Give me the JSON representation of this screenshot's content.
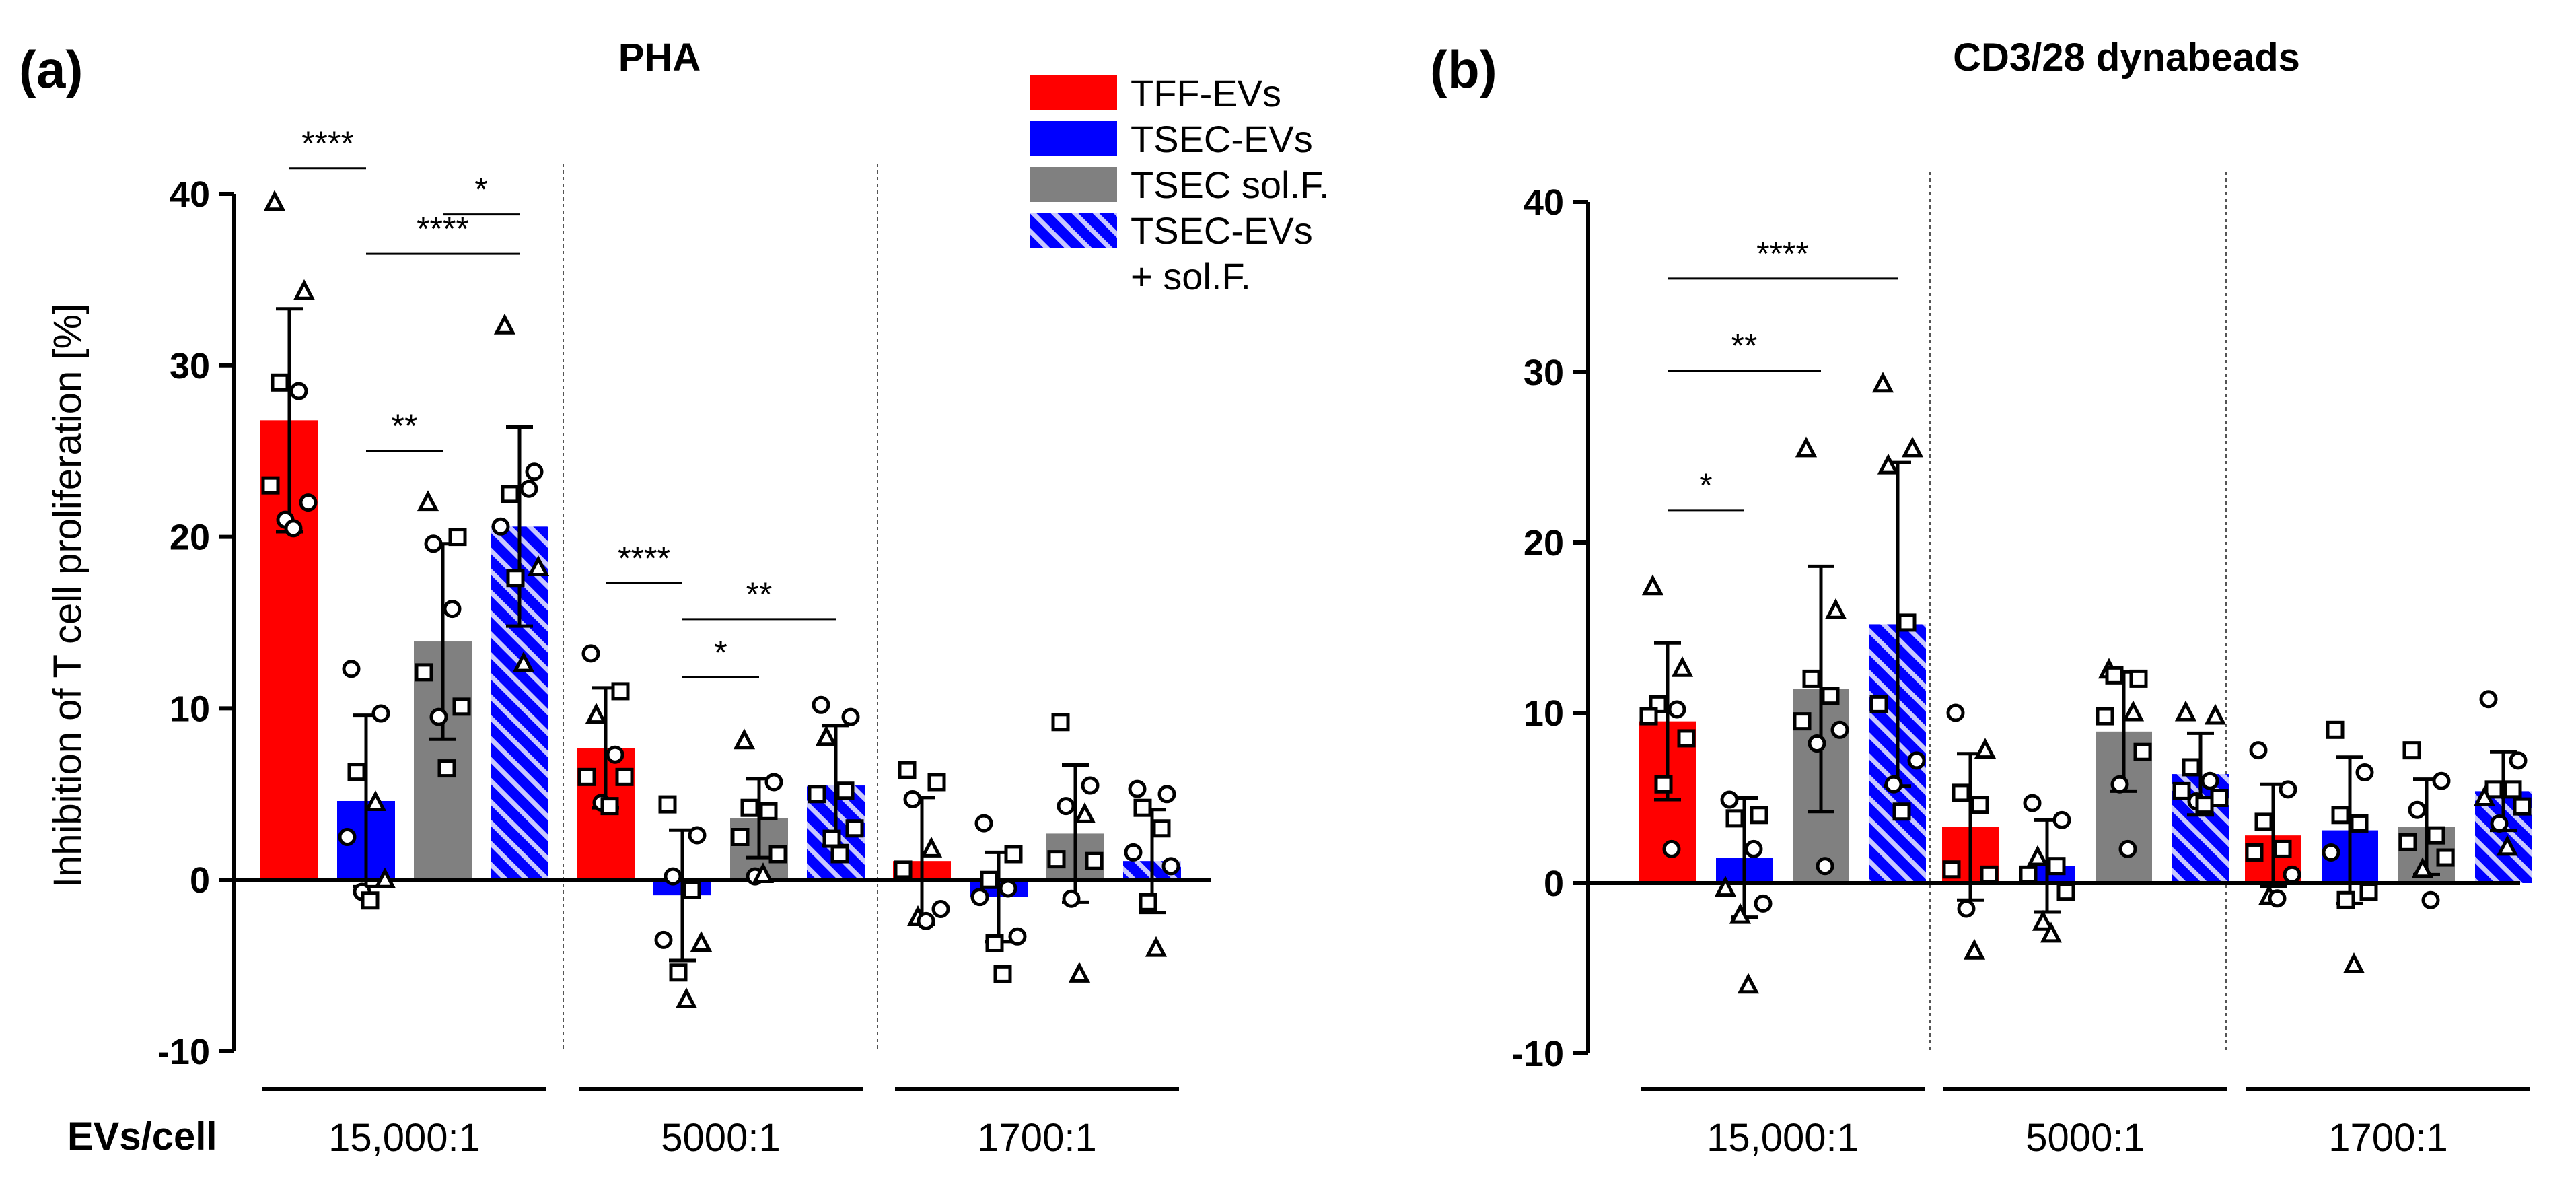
{
  "colors": {
    "tff": "#ff0000",
    "tsec": "#0000ff",
    "sol": "#808080",
    "combo_bg": "#0000ff",
    "combo_stripe": "#c8c8ff",
    "axis": "#000000",
    "sig_line": "#a0a0a0"
  },
  "figure": {
    "xaxis_title": "EVs/cell"
  },
  "legend": {
    "items": [
      {
        "key": "tff",
        "label": "TFF-EVs"
      },
      {
        "key": "tsec",
        "label": "TSEC-EVs"
      },
      {
        "key": "sol",
        "label": "TSEC sol.F."
      },
      {
        "key": "combo",
        "label": "TSEC-EVs",
        "label2": "+ sol.F."
      }
    ]
  },
  "chart_data": [
    {
      "type": "bar",
      "panel_label": "(a)",
      "title": "PHA",
      "ylabel": "Inhibition of T cell proliferation [%]",
      "ylim": [
        -10,
        40
      ],
      "yticks": [
        -10,
        0,
        10,
        20,
        30,
        40
      ],
      "yticks_labels": [
        "-10",
        "0",
        "10",
        "20",
        "30",
        "40"
      ],
      "groups": [
        "15,000:1",
        "5000:1",
        "1700:1"
      ],
      "series": [
        {
          "name": "TFF-EVs",
          "key": "tff",
          "values": [
            26.8,
            7.7,
            1.1
          ],
          "sd": [
            6.5,
            3.5,
            3.7
          ]
        },
        {
          "name": "TSEC-EVs",
          "key": "tsec",
          "values": [
            4.6,
            -0.9,
            -1.0
          ],
          "sd": [
            5.0,
            3.8,
            2.6
          ]
        },
        {
          "name": "TSEC sol.F.",
          "key": "sol",
          "values": [
            13.9,
            3.6,
            2.7
          ],
          "sd": [
            5.7,
            2.3,
            4.0
          ]
        },
        {
          "name": "TSEC-EVs + sol.F.",
          "key": "combo",
          "values": [
            20.6,
            5.5,
            1.1
          ],
          "sd": [
            5.8,
            3.5,
            3.0
          ]
        }
      ],
      "points": [
        [
          [
            [
              39.5,
              "tri"
            ],
            [
              34.3,
              "tri"
            ],
            [
              29.0,
              "sq"
            ],
            [
              28.5,
              "circ"
            ],
            [
              23.0,
              "sq"
            ],
            [
              22.0,
              "circ"
            ],
            [
              21.0,
              "circ"
            ],
            [
              20.5,
              "circ"
            ]
          ],
          [
            [
              12.3,
              "circ"
            ],
            [
              9.7,
              "circ"
            ],
            [
              6.3,
              "sq"
            ],
            [
              4.5,
              "tri"
            ],
            [
              2.5,
              "circ"
            ],
            [
              0.0,
              "tri"
            ],
            [
              -0.7,
              "circ"
            ],
            [
              -1.2,
              "sq"
            ]
          ],
          [
            [
              22.0,
              "tri"
            ],
            [
              20.0,
              "sq"
            ],
            [
              19.6,
              "circ"
            ],
            [
              15.8,
              "circ"
            ],
            [
              12.1,
              "sq"
            ],
            [
              10.1,
              "sq"
            ],
            [
              9.5,
              "circ"
            ],
            [
              6.5,
              "sq"
            ]
          ],
          [
            [
              32.3,
              "tri"
            ],
            [
              23.8,
              "circ"
            ],
            [
              22.5,
              "sq"
            ],
            [
              22.8,
              "circ"
            ],
            [
              20.6,
              "circ"
            ],
            [
              18.2,
              "tri"
            ],
            [
              17.6,
              "sq"
            ],
            [
              12.6,
              "tri"
            ]
          ]
        ],
        [
          [
            [
              13.2,
              "circ"
            ],
            [
              11.0,
              "sq"
            ],
            [
              9.6,
              "tri"
            ],
            [
              7.3,
              "circ"
            ],
            [
              6.0,
              "sq"
            ],
            [
              6.0,
              "sq"
            ],
            [
              4.5,
              "circ"
            ],
            [
              4.3,
              "sq"
            ]
          ],
          [
            [
              4.4,
              "sq"
            ],
            [
              2.6,
              "circ"
            ],
            [
              0.2,
              "circ"
            ],
            [
              -0.6,
              "sq"
            ],
            [
              -3.5,
              "circ"
            ],
            [
              -3.7,
              "tri"
            ],
            [
              -5.4,
              "sq"
            ],
            [
              -7.0,
              "tri"
            ]
          ],
          [
            [
              8.1,
              "tri"
            ],
            [
              5.7,
              "circ"
            ],
            [
              4.2,
              "sq"
            ],
            [
              4.0,
              "sq"
            ],
            [
              2.5,
              "sq"
            ],
            [
              1.5,
              "sq"
            ],
            [
              0.2,
              "circ"
            ],
            [
              0.3,
              "tri"
            ]
          ],
          [
            [
              10.2,
              "circ"
            ],
            [
              9.5,
              "circ"
            ],
            [
              8.3,
              "tri"
            ],
            [
              5.2,
              "sq"
            ],
            [
              5.0,
              "sq"
            ],
            [
              3.0,
              "sq"
            ],
            [
              2.4,
              "sq"
            ],
            [
              1.5,
              "sq"
            ]
          ]
        ],
        [
          [
            [
              6.4,
              "sq"
            ],
            [
              5.7,
              "sq"
            ],
            [
              4.7,
              "circ"
            ],
            [
              1.8,
              "tri"
            ],
            [
              0.6,
              "sq"
            ],
            [
              -1.7,
              "circ"
            ],
            [
              -2.2,
              "tri"
            ],
            [
              -2.4,
              "circ"
            ]
          ],
          [
            [
              3.3,
              "circ"
            ],
            [
              1.5,
              "sq"
            ],
            [
              0.0,
              "sq"
            ],
            [
              -0.5,
              "circ"
            ],
            [
              -1.0,
              "circ"
            ],
            [
              -3.3,
              "circ"
            ],
            [
              -3.7,
              "sq"
            ],
            [
              -5.5,
              "sq"
            ]
          ],
          [
            [
              9.2,
              "sq"
            ],
            [
              5.5,
              "circ"
            ],
            [
              4.3,
              "circ"
            ],
            [
              3.8,
              "tri"
            ],
            [
              1.2,
              "sq"
            ],
            [
              1.1,
              "sq"
            ],
            [
              -1.1,
              "circ"
            ],
            [
              -5.5,
              "tri"
            ]
          ],
          [
            [
              5.3,
              "circ"
            ],
            [
              5.0,
              "circ"
            ],
            [
              4.2,
              "sq"
            ],
            [
              3.0,
              "sq"
            ],
            [
              1.6,
              "circ"
            ],
            [
              0.8,
              "circ"
            ],
            [
              -1.3,
              "sq"
            ],
            [
              -4.0,
              "tri"
            ]
          ]
        ]
      ],
      "significance": [
        {
          "label": "****",
          "from": [
            0,
            0
          ],
          "to": [
            0,
            1
          ],
          "y": 41.5
        },
        {
          "label": "*",
          "from": [
            0,
            2
          ],
          "to": [
            0,
            3
          ],
          "y": 38.8
        },
        {
          "label": "****",
          "from": [
            0,
            1
          ],
          "to": [
            0,
            3
          ],
          "y": 36.5
        },
        {
          "label": "**",
          "from": [
            0,
            1
          ],
          "to": [
            0,
            2
          ],
          "y": 25.0
        },
        {
          "label": "****",
          "from": [
            1,
            0
          ],
          "to": [
            1,
            1
          ],
          "y": 17.3
        },
        {
          "label": "**",
          "from": [
            1,
            1
          ],
          "to": [
            1,
            3
          ],
          "y": 15.2
        },
        {
          "label": "*",
          "from": [
            1,
            1
          ],
          "to": [
            1,
            2
          ],
          "y": 11.8
        }
      ]
    },
    {
      "type": "bar",
      "panel_label": "(b)",
      "title": "CD3/28 dynabeads",
      "ylabel": "",
      "ylim": [
        -10,
        40
      ],
      "yticks": [
        -10,
        0,
        10,
        20,
        30,
        40
      ],
      "yticks_labels": [
        "-10",
        "0",
        "10",
        "20",
        "30",
        "40"
      ],
      "groups": [
        "15,000:1",
        "5000:1",
        "1700:1"
      ],
      "series": [
        {
          "name": "TFF-EVs",
          "key": "tff",
          "values": [
            9.5,
            3.3,
            2.8
          ],
          "sd": [
            4.6,
            4.3,
            3.0
          ]
        },
        {
          "name": "TSEC-EVs",
          "key": "tsec",
          "values": [
            1.5,
            1.0,
            3.1
          ],
          "sd": [
            3.5,
            2.7,
            4.3
          ]
        },
        {
          "name": "TSEC sol.F.",
          "key": "sol",
          "values": [
            11.4,
            8.9,
            3.3
          ],
          "sd": [
            7.2,
            3.5,
            2.8
          ]
        },
        {
          "name": "TSEC-EVs + sol.F.",
          "key": "combo",
          "values": [
            15.2,
            6.4,
            5.4
          ],
          "sd": [
            9.5,
            2.4,
            2.3
          ]
        }
      ],
      "points": [
        [
          [
            [
              17.4,
              "tri"
            ],
            [
              12.6,
              "tri"
            ],
            [
              10.5,
              "sq"
            ],
            [
              10.2,
              "circ"
            ],
            [
              9.8,
              "sq"
            ],
            [
              8.5,
              "sq"
            ],
            [
              5.8,
              "sq"
            ],
            [
              2.0,
              "circ"
            ]
          ],
          [
            [
              4.9,
              "circ"
            ],
            [
              4.0,
              "sq"
            ],
            [
              3.8,
              "sq"
            ],
            [
              2.0,
              "circ"
            ],
            [
              -0.3,
              "tri"
            ],
            [
              -1.2,
              "circ"
            ],
            [
              -1.9,
              "tri"
            ],
            [
              -6.0,
              "tri"
            ]
          ],
          [
            [
              25.5,
              "tri"
            ],
            [
              16.0,
              "tri"
            ],
            [
              12.0,
              "sq"
            ],
            [
              11.0,
              "sq"
            ],
            [
              9.5,
              "sq"
            ],
            [
              9.0,
              "circ"
            ],
            [
              8.2,
              "circ"
            ],
            [
              1.0,
              "circ"
            ]
          ],
          [
            [
              29.3,
              "tri"
            ],
            [
              25.5,
              "tri"
            ],
            [
              24.5,
              "tri"
            ],
            [
              15.3,
              "sq"
            ],
            [
              10.5,
              "sq"
            ],
            [
              7.2,
              "circ"
            ],
            [
              5.8,
              "circ"
            ],
            [
              4.2,
              "sq"
            ]
          ]
        ],
        [
          [
            [
              10.0,
              "circ"
            ],
            [
              7.8,
              "tri"
            ],
            [
              5.3,
              "sq"
            ],
            [
              4.6,
              "sq"
            ],
            [
              0.8,
              "sq"
            ],
            [
              0.5,
              "sq"
            ],
            [
              -1.5,
              "circ"
            ],
            [
              -4.0,
              "tri"
            ]
          ],
          [
            [
              4.7,
              "circ"
            ],
            [
              3.7,
              "circ"
            ],
            [
              1.5,
              "tri"
            ],
            [
              1.0,
              "sq"
            ],
            [
              0.5,
              "sq"
            ],
            [
              -0.5,
              "sq"
            ],
            [
              -2.3,
              "tri"
            ],
            [
              -3.0,
              "tri"
            ]
          ],
          [
            [
              12.5,
              "tri"
            ],
            [
              12.0,
              "sq"
            ],
            [
              12.2,
              "sq"
            ],
            [
              10.0,
              "tri"
            ],
            [
              9.8,
              "sq"
            ],
            [
              7.7,
              "sq"
            ],
            [
              5.8,
              "circ"
            ],
            [
              2.0,
              "circ"
            ]
          ],
          [
            [
              10.0,
              "tri"
            ],
            [
              9.8,
              "tri"
            ],
            [
              6.8,
              "sq"
            ],
            [
              6.0,
              "circ"
            ],
            [
              5.4,
              "sq"
            ],
            [
              5.0,
              "sq"
            ],
            [
              4.8,
              "circ"
            ],
            [
              4.6,
              "sq"
            ]
          ]
        ],
        [
          [
            [
              7.8,
              "circ"
            ],
            [
              5.5,
              "circ"
            ],
            [
              3.6,
              "sq"
            ],
            [
              2.0,
              "sq"
            ],
            [
              1.8,
              "sq"
            ],
            [
              0.5,
              "circ"
            ],
            [
              -0.8,
              "tri"
            ],
            [
              -0.9,
              "circ"
            ]
          ],
          [
            [
              9.0,
              "sq"
            ],
            [
              6.5,
              "circ"
            ],
            [
              4.0,
              "sq"
            ],
            [
              3.5,
              "sq"
            ],
            [
              1.8,
              "circ"
            ],
            [
              -0.5,
              "sq"
            ],
            [
              -1.0,
              "sq"
            ],
            [
              -4.8,
              "tri"
            ]
          ],
          [
            [
              7.8,
              "sq"
            ],
            [
              6.0,
              "circ"
            ],
            [
              4.3,
              "circ"
            ],
            [
              2.8,
              "sq"
            ],
            [
              2.4,
              "sq"
            ],
            [
              1.5,
              "sq"
            ],
            [
              0.8,
              "tri"
            ],
            [
              -1.0,
              "circ"
            ]
          ],
          [
            [
              10.8,
              "circ"
            ],
            [
              7.2,
              "circ"
            ],
            [
              5.5,
              "sq"
            ],
            [
              5.5,
              "sq"
            ],
            [
              5.0,
              "tri"
            ],
            [
              4.5,
              "sq"
            ],
            [
              3.5,
              "circ"
            ],
            [
              2.1,
              "tri"
            ]
          ]
        ]
      ],
      "significance": [
        {
          "label": "****",
          "from": [
            0,
            0
          ],
          "to": [
            0,
            3
          ],
          "y": 35.5
        },
        {
          "label": "**",
          "from": [
            0,
            0
          ],
          "to": [
            0,
            2
          ],
          "y": 30.1
        },
        {
          "label": "*",
          "from": [
            0,
            0
          ],
          "to": [
            0,
            1
          ],
          "y": 21.9
        }
      ]
    }
  ]
}
